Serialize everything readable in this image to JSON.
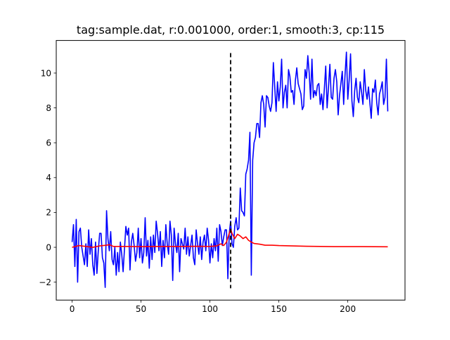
{
  "chart_data": {
    "type": "line",
    "title": "tag:sample.dat, r:0.001000, order:1, smooth:3, cp:115",
    "xlabel": "",
    "ylabel": "",
    "xlim": [
      -11.5,
      241.5
    ],
    "ylim": [
      -3.03,
      11.87
    ],
    "x_ticks": [
      0,
      50,
      100,
      150,
      200
    ],
    "y_ticks": [
      -2,
      0,
      2,
      4,
      6,
      8,
      10
    ],
    "grid": false,
    "legend": null,
    "changepoint": {
      "x": 115,
      "y_range": [
        -2.35,
        11.15
      ],
      "color": "#000000",
      "style": "dashed"
    },
    "series": [
      {
        "color": "#0000ff",
        "points": [
          [
            0,
            0.3
          ],
          [
            1,
            1.3
          ],
          [
            2,
            -1.1
          ],
          [
            3,
            1.6
          ],
          [
            4,
            -2.0
          ],
          [
            5,
            0.9
          ],
          [
            6,
            1.1
          ],
          [
            7,
            0.0
          ],
          [
            8,
            -0.5
          ],
          [
            9,
            -1.0
          ],
          [
            10,
            0.2
          ],
          [
            11,
            -1.1
          ],
          [
            12,
            1.0
          ],
          [
            13,
            -0.4
          ],
          [
            14,
            0.5
          ],
          [
            15,
            -1.0
          ],
          [
            16,
            -1.6
          ],
          [
            17,
            0.3
          ],
          [
            18,
            -1.5
          ],
          [
            19,
            -0.2
          ],
          [
            20,
            0.8
          ],
          [
            21,
            0.8
          ],
          [
            22,
            -0.6
          ],
          [
            23,
            -0.9
          ],
          [
            24,
            -2.3
          ],
          [
            25,
            2.1
          ],
          [
            26,
            0.5
          ],
          [
            27,
            -0.2
          ],
          [
            28,
            0.9
          ],
          [
            29,
            -0.7
          ],
          [
            30,
            -1.0
          ],
          [
            31,
            0.0
          ],
          [
            32,
            -1.6
          ],
          [
            33,
            -0.3
          ],
          [
            34,
            -1.4
          ],
          [
            35,
            0.3
          ],
          [
            36,
            -0.4
          ],
          [
            37,
            -1.4
          ],
          [
            38,
            -0.1
          ],
          [
            39,
            1.2
          ],
          [
            40,
            0.7
          ],
          [
            41,
            1.1
          ],
          [
            42,
            -1.3
          ],
          [
            43,
            0.3
          ],
          [
            44,
            0.8
          ],
          [
            45,
            0.1
          ],
          [
            46,
            -0.8
          ],
          [
            47,
            -0.3
          ],
          [
            48,
            1.1
          ],
          [
            49,
            -0.6
          ],
          [
            50,
            0.5
          ],
          [
            51,
            -0.9
          ],
          [
            52,
            -0.3
          ],
          [
            53,
            1.7
          ],
          [
            54,
            -0.5
          ],
          [
            55,
            0.4
          ],
          [
            56,
            -1.2
          ],
          [
            57,
            0.6
          ],
          [
            58,
            -0.7
          ],
          [
            59,
            0.7
          ],
          [
            60,
            -0.3
          ],
          [
            61,
            1.5
          ],
          [
            62,
            0.8
          ],
          [
            63,
            -0.2
          ],
          [
            64,
            0.9
          ],
          [
            65,
            -1.1
          ],
          [
            66,
            0.4
          ],
          [
            67,
            -0.6
          ],
          [
            68,
            1.3
          ],
          [
            69,
            0.2
          ],
          [
            70,
            -0.4
          ],
          [
            71,
            1.5
          ],
          [
            72,
            0.7
          ],
          [
            73,
            -1.9
          ],
          [
            74,
            1.1
          ],
          [
            75,
            0.2
          ],
          [
            76,
            -0.3
          ],
          [
            77,
            0.8
          ],
          [
            78,
            -1.4
          ],
          [
            79,
            0.5
          ],
          [
            80,
            0.2
          ],
          [
            81,
            -0.1
          ],
          [
            82,
            1.1
          ],
          [
            83,
            -0.4
          ],
          [
            84,
            0.6
          ],
          [
            85,
            -0.5
          ],
          [
            86,
            0.1
          ],
          [
            87,
            0.7
          ],
          [
            88,
            -0.6
          ],
          [
            89,
            -1.0
          ],
          [
            90,
            1.0
          ],
          [
            91,
            0.2
          ],
          [
            92,
            -0.4
          ],
          [
            93,
            0.6
          ],
          [
            94,
            -0.7
          ],
          [
            95,
            0.3
          ],
          [
            96,
            0.7
          ],
          [
            97,
            -0.2
          ],
          [
            98,
            1.1
          ],
          [
            99,
            0.4
          ],
          [
            100,
            -0.9
          ],
          [
            101,
            0.2
          ],
          [
            102,
            -0.6
          ],
          [
            103,
            0.5
          ],
          [
            104,
            -0.2
          ],
          [
            105,
            1.1
          ],
          [
            106,
            -0.8
          ],
          [
            107,
            1.3
          ],
          [
            108,
            0.9
          ],
          [
            109,
            0.1
          ],
          [
            110,
            0.6
          ],
          [
            111,
            1.0
          ],
          [
            112,
            1.0
          ],
          [
            113,
            -1.8
          ],
          [
            114,
            0.8
          ],
          [
            115,
            1.5
          ],
          [
            116,
            0.2
          ],
          [
            117,
            0.0
          ],
          [
            118,
            1.2
          ],
          [
            119,
            1.7
          ],
          [
            120,
            1.0
          ],
          [
            121,
            1.1
          ],
          [
            122,
            3.4
          ],
          [
            123,
            2.1
          ],
          [
            124,
            2.0
          ],
          [
            125,
            1.8
          ],
          [
            126,
            4.2
          ],
          [
            127,
            4.5
          ],
          [
            128,
            5.0
          ],
          [
            129,
            6.6
          ],
          [
            130,
            -1.6
          ],
          [
            131,
            5.0
          ],
          [
            132,
            6.0
          ],
          [
            133,
            6.3
          ],
          [
            134,
            7.1
          ],
          [
            135,
            7.1
          ],
          [
            136,
            6.3
          ],
          [
            137,
            8.3
          ],
          [
            138,
            8.7
          ],
          [
            139,
            8.2
          ],
          [
            140,
            6.9
          ],
          [
            141,
            8.7
          ],
          [
            142,
            8.6
          ],
          [
            143,
            8.1
          ],
          [
            144,
            7.8
          ],
          [
            145,
            8.3
          ],
          [
            146,
            10.6
          ],
          [
            147,
            9.2
          ],
          [
            148,
            7.8
          ],
          [
            149,
            9.5
          ],
          [
            150,
            8.4
          ],
          [
            151,
            9.2
          ],
          [
            152,
            10.8
          ],
          [
            153,
            8.0
          ],
          [
            154,
            8.9
          ],
          [
            155,
            9.3
          ],
          [
            156,
            8.0
          ],
          [
            157,
            10.2
          ],
          [
            158,
            9.8
          ],
          [
            159,
            8.9
          ],
          [
            160,
            9.0
          ],
          [
            161,
            8.2
          ],
          [
            162,
            9.6
          ],
          [
            163,
            10.3
          ],
          [
            164,
            9.4
          ],
          [
            165,
            9.1
          ],
          [
            166,
            8.8
          ],
          [
            167,
            7.9
          ],
          [
            168,
            8.1
          ],
          [
            169,
            10.2
          ],
          [
            170,
            9.7
          ],
          [
            171,
            11.0
          ],
          [
            172,
            10.0
          ],
          [
            173,
            8.5
          ],
          [
            174,
            10.8
          ],
          [
            175,
            8.6
          ],
          [
            176,
            9.0
          ],
          [
            177,
            8.7
          ],
          [
            178,
            9.3
          ],
          [
            179,
            9.4
          ],
          [
            180,
            8.2
          ],
          [
            181,
            8.8
          ],
          [
            182,
            7.9
          ],
          [
            183,
            9.1
          ],
          [
            184,
            10.4
          ],
          [
            185,
            8.0
          ],
          [
            186,
            9.2
          ],
          [
            187,
            10.5
          ],
          [
            188,
            8.6
          ],
          [
            189,
            8.5
          ],
          [
            190,
            9.7
          ],
          [
            191,
            10.2
          ],
          [
            192,
            9.5
          ],
          [
            193,
            7.6
          ],
          [
            194,
            8.7
          ],
          [
            195,
            9.4
          ],
          [
            196,
            10.1
          ],
          [
            197,
            8.2
          ],
          [
            198,
            9.9
          ],
          [
            199,
            11.2
          ],
          [
            200,
            8.5
          ],
          [
            201,
            9.6
          ],
          [
            202,
            11.1
          ],
          [
            203,
            8.4
          ],
          [
            204,
            7.5
          ],
          [
            205,
            9.0
          ],
          [
            206,
            9.7
          ],
          [
            207,
            8.6
          ],
          [
            208,
            8.3
          ],
          [
            209,
            9.5
          ],
          [
            210,
            8.9
          ],
          [
            211,
            8.2
          ],
          [
            212,
            10.2
          ],
          [
            213,
            9.0
          ],
          [
            214,
            8.5
          ],
          [
            215,
            9.2
          ],
          [
            216,
            8.3
          ],
          [
            217,
            7.4
          ],
          [
            218,
            9.1
          ],
          [
            219,
            8.9
          ],
          [
            220,
            9.6
          ],
          [
            221,
            8.3
          ],
          [
            222,
            7.6
          ],
          [
            223,
            8.8
          ],
          [
            224,
            9.1
          ],
          [
            225,
            9.5
          ],
          [
            226,
            8.2
          ],
          [
            227,
            8.6
          ],
          [
            228,
            10.8
          ],
          [
            229,
            7.8
          ]
        ]
      },
      {
        "color": "#ff0000",
        "points": [
          [
            0,
            0.0
          ],
          [
            5,
            0.1
          ],
          [
            10,
            0.05
          ],
          [
            15,
            0.0
          ],
          [
            20,
            0.08
          ],
          [
            25,
            0.12
          ],
          [
            27,
            0.15
          ],
          [
            30,
            0.05
          ],
          [
            40,
            0.05
          ],
          [
            50,
            0.04
          ],
          [
            60,
            0.05
          ],
          [
            70,
            0.05
          ],
          [
            80,
            0.05
          ],
          [
            90,
            0.06
          ],
          [
            100,
            0.05
          ],
          [
            105,
            0.08
          ],
          [
            108,
            0.2
          ],
          [
            110,
            0.1
          ],
          [
            112,
            0.3
          ],
          [
            115,
            1.05
          ],
          [
            116,
            0.8
          ],
          [
            118,
            0.5
          ],
          [
            120,
            0.75
          ],
          [
            122,
            0.65
          ],
          [
            124,
            0.5
          ],
          [
            126,
            0.6
          ],
          [
            128,
            0.4
          ],
          [
            130,
            0.3
          ],
          [
            132,
            0.22
          ],
          [
            134,
            0.2
          ],
          [
            136,
            0.18
          ],
          [
            140,
            0.12
          ],
          [
            145,
            0.12
          ],
          [
            150,
            0.1
          ],
          [
            160,
            0.08
          ],
          [
            170,
            0.06
          ],
          [
            180,
            0.05
          ],
          [
            190,
            0.04
          ],
          [
            200,
            0.04
          ],
          [
            210,
            0.04
          ],
          [
            229,
            0.03
          ]
        ]
      }
    ]
  }
}
